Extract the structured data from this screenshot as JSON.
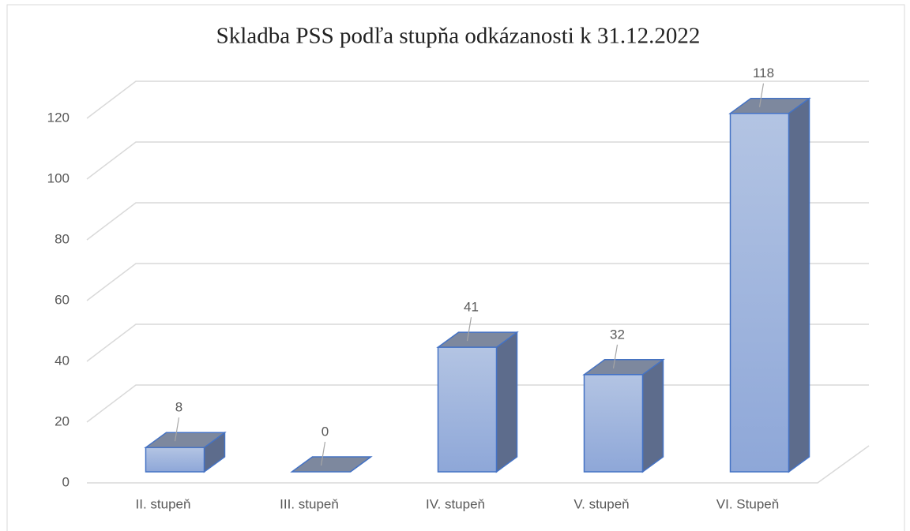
{
  "chart_data": {
    "type": "bar3d",
    "title": "Skladba PSS podľa stupňa odkázanosti k 31.12.2022",
    "categories": [
      "II. stupeň",
      "III. stupeň",
      "IV. stupeň",
      "V. stupeň",
      "VI. Stupeň"
    ],
    "values": [
      8,
      0,
      41,
      32,
      118
    ],
    "color": "#9fb5e0",
    "ylim": [
      0,
      120
    ],
    "yticks": [
      0,
      20,
      40,
      60,
      80,
      100,
      120
    ],
    "grid": true
  }
}
